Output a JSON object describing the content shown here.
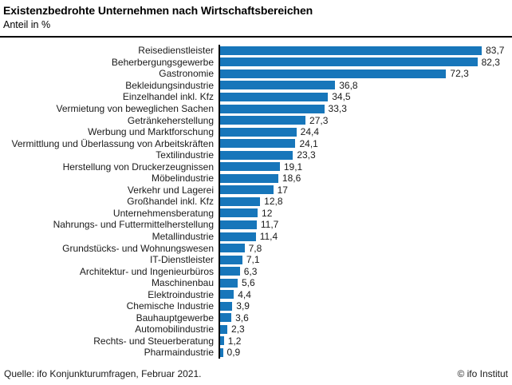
{
  "header": {
    "title": "Existenzbedrohte Unternehmen nach Wirtschaftsbereichen",
    "subtitle": "Anteil in %"
  },
  "footer": {
    "source": "Quelle: ifo Konjunkturumfragen, Februar 2021.",
    "copyright": "© ifo Institut"
  },
  "colors": {
    "bar": "#1776ba",
    "axis": "#000000",
    "rule": "#000000"
  },
  "chart_data": {
    "type": "bar",
    "orientation": "horizontal",
    "title": "Existenzbedrohte Unternehmen nach Wirtschaftsbereichen",
    "subtitle": "Anteil in %",
    "xlabel": "",
    "ylabel": "",
    "xlim": [
      0,
      92
    ],
    "grid": false,
    "legend": false,
    "categories": [
      "Reisedienstleister",
      "Beherbergungsgewerbe",
      "Gastronomie",
      "Bekleidungsindustrie",
      "Einzelhandel inkl. Kfz",
      "Vermietung von beweglichen Sachen",
      "Getränkeherstellung",
      "Werbung und Marktforschung",
      "Vermittlung und Überlassung von Arbeitskräften",
      "Textilindustrie",
      "Herstellung von Druckerzeugnissen",
      "Möbelindustrie",
      "Verkehr und Lagerei",
      "Großhandel inkl. Kfz",
      "Unternehmensberatung",
      "Nahrungs- und Futtermittelherstellung",
      "Metallindustrie",
      "Grundstücks- und Wohnungswesen",
      "IT-Dienstleister",
      "Architektur- und Ingenieurbüros",
      "Maschinenbau",
      "Elektroindustrie",
      "Chemische Industrie",
      "Bauhauptgewerbe",
      "Automobilindustrie",
      "Rechts- und Steuerberatung",
      "Pharmaindustrie"
    ],
    "values": [
      83.7,
      82.3,
      72.3,
      36.8,
      34.5,
      33.3,
      27.3,
      24.4,
      24.1,
      23.3,
      19.1,
      18.6,
      17,
      12.8,
      12,
      11.7,
      11.4,
      7.8,
      7.1,
      6.3,
      5.6,
      4.4,
      3.9,
      3.6,
      2.3,
      1.2,
      0.9
    ],
    "value_labels": [
      "83,7",
      "82,3",
      "72,3",
      "36,8",
      "34,5",
      "33,3",
      "27,3",
      "24,4",
      "24,1",
      "23,3",
      "19,1",
      "18,6",
      "17",
      "12,8",
      "12",
      "11,7",
      "11,4",
      "7,8",
      "7,1",
      "6,3",
      "5,6",
      "4,4",
      "3,9",
      "3,6",
      "2,3",
      "1,2",
      "0,9"
    ]
  }
}
